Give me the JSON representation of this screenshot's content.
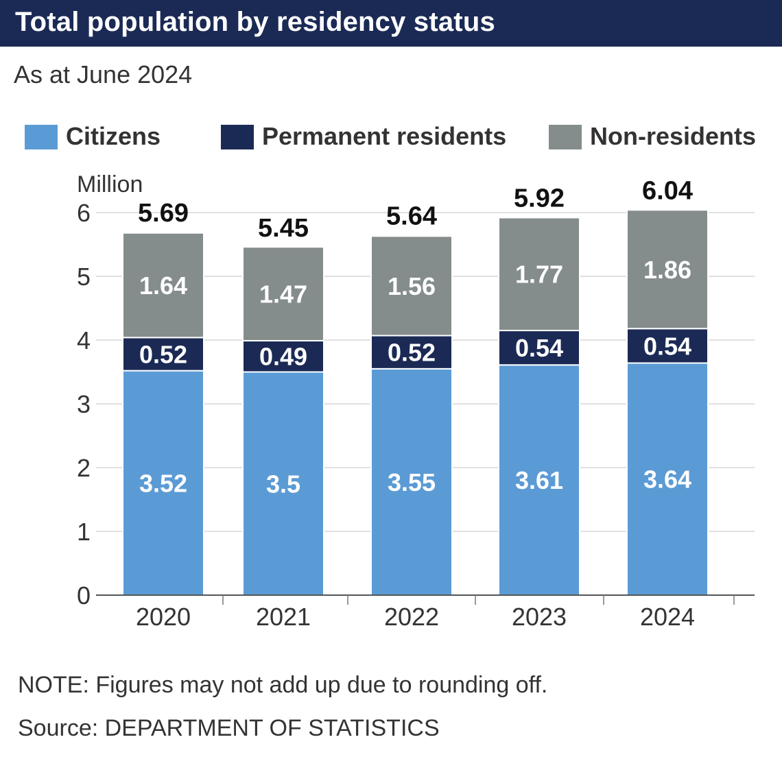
{
  "header": {
    "title": "Total population by residency status",
    "subtitle": "As at June 2024"
  },
  "legend": [
    {
      "label": "Citizens",
      "color": "#5b9bd5"
    },
    {
      "label": "Permanent residents",
      "color": "#1b2a55"
    },
    {
      "label": "Non-residents",
      "color": "#858c8c"
    }
  ],
  "chart_data": {
    "type": "bar",
    "stacked": true,
    "categories": [
      "2020",
      "2021",
      "2022",
      "2023",
      "2024"
    ],
    "series": [
      {
        "name": "Citizens",
        "color": "#5b9bd5",
        "values": [
          3.52,
          3.5,
          3.55,
          3.61,
          3.64
        ]
      },
      {
        "name": "Permanent residents",
        "color": "#1b2a55",
        "values": [
          0.52,
          0.49,
          0.52,
          0.54,
          0.54
        ]
      },
      {
        "name": "Non-residents",
        "color": "#858c8c",
        "values": [
          1.64,
          1.47,
          1.56,
          1.77,
          1.86
        ]
      }
    ],
    "totals": [
      5.69,
      5.45,
      5.64,
      5.92,
      6.04
    ],
    "ylabel": "Million",
    "ylim": [
      0,
      6
    ],
    "yticks": [
      0,
      1,
      2,
      3,
      4,
      5,
      6
    ],
    "grid": true
  },
  "footer": {
    "note": "NOTE: Figures may not add up due to rounding off.",
    "source": "Source: DEPARTMENT OF STATISTICS"
  }
}
